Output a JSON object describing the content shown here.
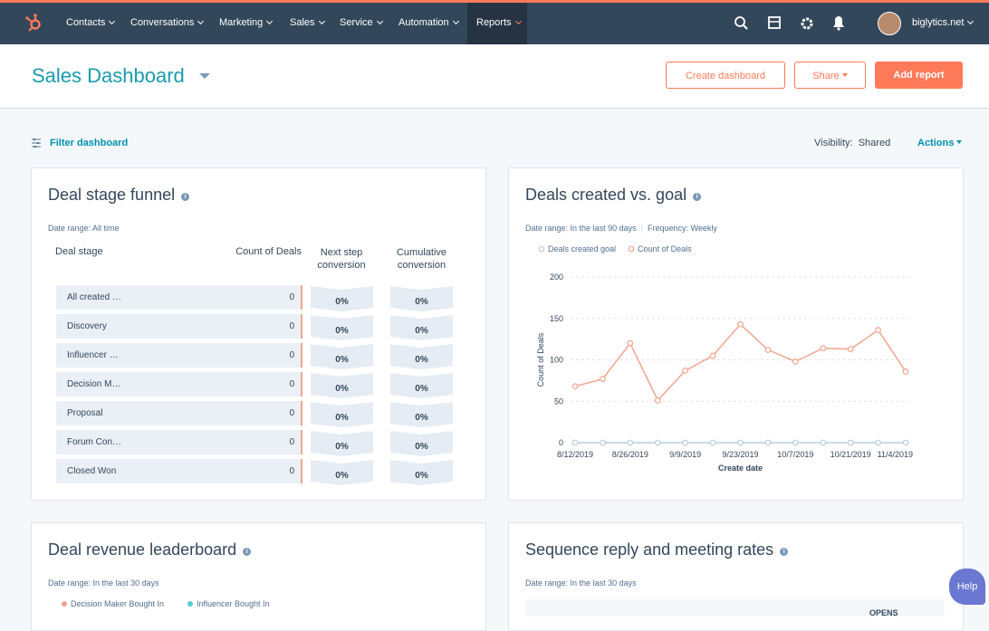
{
  "nav": {
    "items": [
      "Contacts",
      "Conversations",
      "Marketing",
      "Sales",
      "Service",
      "Automation",
      "Reports"
    ],
    "account": "biglytics.net"
  },
  "header": {
    "title": "Sales Dashboard",
    "buttons": [
      "Create dashboard",
      "Share",
      "Add report"
    ]
  },
  "toolbar": {
    "filter": "Filter dashboard",
    "visibility_label": "Visibility:",
    "visibility": "Shared",
    "actions": "Actions"
  },
  "funnel": {
    "title": "Deal stage funnel",
    "date_range_label": "Date range:",
    "date_range": "All time",
    "columns": [
      "Deal stage",
      "Count of Deals",
      "Next step conversion",
      "Cumulative conversion"
    ],
    "rows": [
      {
        "stage": "All created …",
        "count": 0,
        "next": "0%",
        "cumulative": "0%"
      },
      {
        "stage": "Discovery",
        "count": 0,
        "next": "0%",
        "cumulative": "0%"
      },
      {
        "stage": "Influencer …",
        "count": 0,
        "next": "0%",
        "cumulative": "0%"
      },
      {
        "stage": "Decision M…",
        "count": 0,
        "next": "0%",
        "cumulative": "0%"
      },
      {
        "stage": "Proposal",
        "count": 0,
        "next": "0%",
        "cumulative": "0%"
      },
      {
        "stage": "Forum Con…",
        "count": 0,
        "next": "0%",
        "cumulative": "0%"
      },
      {
        "stage": "Closed Won",
        "count": 0,
        "next": "0%",
        "cumulative": "0%"
      }
    ]
  },
  "goal_card": {
    "title": "Deals created vs. goal",
    "date_range_label": "Date range:",
    "date_range": "In the last 90 days",
    "frequency_label": "Frequency:",
    "frequency": "Weekly",
    "chart_data": {
      "type": "line",
      "x_label": "Create date",
      "y_label": "Count of Deals",
      "categories": [
        "8/12/2019",
        null,
        "8/26/2019",
        null,
        "9/9/2019",
        null,
        "9/23/2019",
        null,
        "10/7/2019",
        null,
        "10/21/2019",
        null,
        "11/4/2019"
      ],
      "series": [
        {
          "name": "Deals created goal",
          "color": "#b9cde0",
          "values": [
            0,
            0,
            0,
            0,
            0,
            0,
            0,
            0,
            0,
            0,
            0,
            0,
            0
          ]
        },
        {
          "name": "Count of Deals",
          "color": "#f2a58e",
          "values": [
            68,
            77,
            120,
            51,
            87,
            105,
            143,
            112,
            98,
            114,
            113,
            136,
            86
          ]
        }
      ],
      "ylim": [
        0,
        200
      ],
      "yticks": [
        0,
        50,
        100,
        150,
        200
      ],
      "grid": true
    }
  },
  "leaderboard": {
    "title": "Deal revenue leaderboard",
    "date_range_label": "Date range:",
    "date_range": "In the last 30 days",
    "legend": [
      "Decision Maker Bought In",
      "Influencer Bought In"
    ]
  },
  "sequence": {
    "title": "Sequence reply and meeting rates",
    "date_range_label": "Date range:",
    "date_range": "In the last 30 days",
    "column": "OPENS"
  },
  "help": "Help"
}
